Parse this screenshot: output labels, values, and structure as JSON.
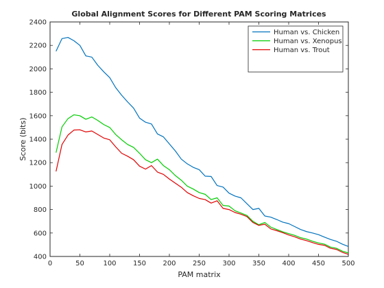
{
  "chart_data": {
    "type": "line",
    "title": "Global Alignment Scores for Different PAM Scoring Matrices",
    "xlabel": "PAM matrix",
    "ylabel": "Score (bits)",
    "xlim": [
      0,
      500
    ],
    "ylim": [
      400,
      2400
    ],
    "xticks": [
      0,
      50,
      100,
      150,
      200,
      250,
      300,
      350,
      400,
      450,
      500
    ],
    "yticks": [
      400,
      600,
      800,
      1000,
      1200,
      1400,
      1600,
      1800,
      2000,
      2200,
      2400
    ],
    "grid": false,
    "legend_position": "top-right",
    "x": [
      10,
      20,
      30,
      40,
      50,
      60,
      70,
      80,
      90,
      100,
      110,
      120,
      130,
      140,
      150,
      160,
      170,
      180,
      190,
      200,
      210,
      220,
      230,
      240,
      250,
      260,
      270,
      280,
      290,
      300,
      310,
      320,
      330,
      340,
      350,
      360,
      370,
      380,
      390,
      400,
      410,
      420,
      430,
      440,
      450,
      460,
      470,
      480,
      490,
      500
    ],
    "series": [
      {
        "name": "Human vs. Chicken",
        "color": "#0072bd",
        "values": [
          2150,
          2258,
          2268,
          2240,
          2200,
          2110,
          2100,
          2030,
          1975,
          1925,
          1840,
          1775,
          1718,
          1665,
          1580,
          1545,
          1530,
          1445,
          1420,
          1360,
          1300,
          1230,
          1190,
          1160,
          1140,
          1085,
          1082,
          1005,
          992,
          940,
          915,
          900,
          850,
          800,
          810,
          745,
          735,
          715,
          693,
          680,
          655,
          630,
          612,
          600,
          586,
          565,
          545,
          530,
          505,
          485
        ]
      },
      {
        "name": "Human vs. Xenopus",
        "color": "#00cc00",
        "values": [
          1285,
          1505,
          1575,
          1608,
          1600,
          1570,
          1590,
          1560,
          1525,
          1500,
          1440,
          1395,
          1355,
          1330,
          1280,
          1225,
          1200,
          1230,
          1175,
          1140,
          1090,
          1050,
          1000,
          975,
          945,
          930,
          885,
          900,
          835,
          830,
          790,
          770,
          750,
          700,
          670,
          690,
          650,
          630,
          610,
          595,
          580,
          560,
          548,
          530,
          515,
          505,
          480,
          470,
          445,
          430
        ]
      },
      {
        "name": "Human vs. Trout",
        "color": "#e00000",
        "values": [
          1125,
          1355,
          1435,
          1478,
          1480,
          1462,
          1470,
          1440,
          1410,
          1395,
          1335,
          1280,
          1255,
          1225,
          1170,
          1145,
          1175,
          1120,
          1100,
          1060,
          1025,
          990,
          945,
          918,
          895,
          885,
          855,
          875,
          810,
          800,
          775,
          760,
          740,
          690,
          665,
          675,
          635,
          620,
          603,
          583,
          568,
          548,
          535,
          518,
          503,
          495,
          470,
          460,
          435,
          418
        ]
      }
    ]
  }
}
